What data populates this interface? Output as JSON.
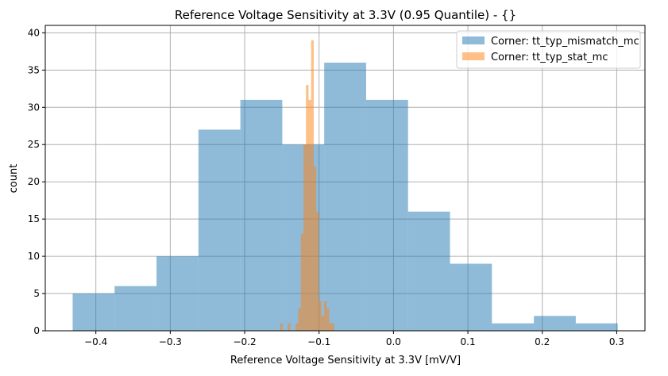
{
  "chart_data": {
    "type": "histogram",
    "title": "Reference Voltage Sensitivity at 3.3V (0.95 Quantile) - {}",
    "xlabel": "Reference Voltage Sensitivity at 3.3V [mV/V]",
    "ylabel": "count",
    "xlim": [
      -0.468,
      0.338
    ],
    "ylim": [
      0,
      41
    ],
    "xticks": [
      "−0.4",
      "−0.3",
      "−0.2",
      "−0.1",
      "0.0",
      "0.1",
      "0.2",
      "0.3"
    ],
    "xtick_values": [
      -0.4,
      -0.3,
      -0.2,
      -0.1,
      0.0,
      0.1,
      0.2,
      0.3
    ],
    "yticks": [
      0,
      5,
      10,
      15,
      20,
      25,
      30,
      35,
      40
    ],
    "grid": true,
    "legend_position": "top-right",
    "series": [
      {
        "name": "Corner: tt_typ_mismatch_mc",
        "color": "#1f77b4",
        "alpha": 0.5,
        "bin_start": -0.4312,
        "bin_width": 0.05635,
        "counts": [
          5,
          6,
          10,
          27,
          31,
          25,
          36,
          31,
          16,
          9,
          1,
          2,
          1
        ]
      },
      {
        "name": "Corner: tt_typ_stat_mc",
        "color": "#ff7f0e",
        "alpha": 0.5,
        "bin_start": -0.1523,
        "bin_width": 0.003467,
        "counts": [
          1,
          0,
          0,
          1,
          0,
          0,
          1,
          3,
          13,
          25,
          33,
          31,
          39,
          22,
          16,
          4,
          2,
          4,
          3,
          1,
          1
        ]
      }
    ]
  }
}
